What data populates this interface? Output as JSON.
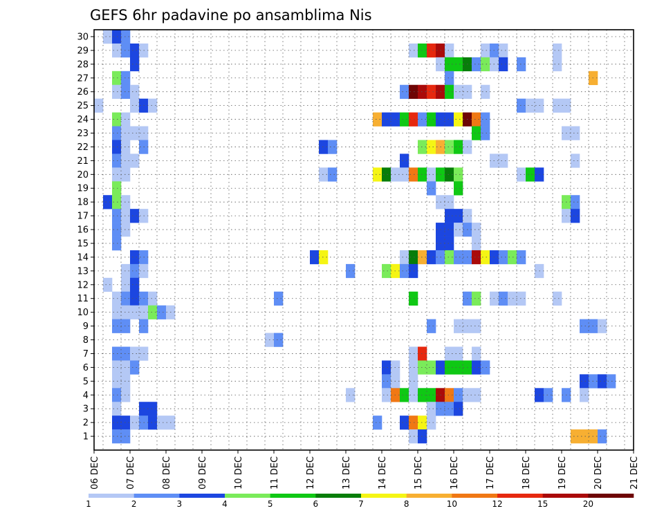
{
  "chart_data": {
    "type": "heatmap",
    "title": "GEFS 6hr padavine po ansamblima Nis",
    "x_tick_labels": [
      "06 DEC",
      "07 DEC",
      "08 DEC",
      "09 DEC",
      "10 DEC",
      "11 DEC",
      "12 DEC",
      "13 DEC",
      "14 DEC",
      "15 DEC",
      "16 DEC",
      "17 DEC",
      "18 DEC",
      "19 DEC",
      "20 DEC",
      "21 DEC"
    ],
    "y_tick_labels": [
      "1",
      "2",
      "3",
      "4",
      "5",
      "6",
      "7",
      "8",
      "9",
      "10",
      "11",
      "12",
      "13",
      "14",
      "15",
      "16",
      "17",
      "18",
      "19",
      "20",
      "21",
      "22",
      "23",
      "24",
      "25",
      "26",
      "27",
      "28",
      "29",
      "30"
    ],
    "xlim_days": [
      6,
      21
    ],
    "ylim_members": [
      0,
      30
    ],
    "time_step_hours": 6,
    "grid": true,
    "colorbar": {
      "labels": [
        "1",
        "2",
        "3",
        "4",
        "5",
        "6",
        "7",
        "8",
        "10",
        "12",
        "15",
        "20"
      ],
      "thresholds": [
        1,
        2,
        3,
        4,
        5,
        6,
        7,
        8,
        10,
        12,
        15,
        20
      ],
      "colors": [
        "#b4c8f5",
        "#5f8ef5",
        "#1c46e0",
        "#7aeb5a",
        "#0fc814",
        "#087d0a",
        "#f5f514",
        "#f7af32",
        "#f07814",
        "#e6280f",
        "#aa0a0a",
        "#6e0505"
      ]
    },
    "cells_note": "each cell: [member, time_step_index (0 = 06 DEC 00z, 4 per day), color_class 1..12]",
    "cells": [
      [
        30,
        1,
        1
      ],
      [
        30,
        2,
        3
      ],
      [
        30,
        3,
        2
      ],
      [
        29,
        2,
        1
      ],
      [
        29,
        3,
        2
      ],
      [
        29,
        4,
        3
      ],
      [
        29,
        5,
        1
      ],
      [
        29,
        35,
        1
      ],
      [
        29,
        36,
        5
      ],
      [
        29,
        37,
        10
      ],
      [
        29,
        38,
        11
      ],
      [
        29,
        39,
        1
      ],
      [
        29,
        43,
        1
      ],
      [
        29,
        44,
        2
      ],
      [
        29,
        45,
        1
      ],
      [
        29,
        51,
        1
      ],
      [
        28,
        4,
        3
      ],
      [
        28,
        38,
        1
      ],
      [
        28,
        39,
        5
      ],
      [
        28,
        40,
        5
      ],
      [
        28,
        41,
        6
      ],
      [
        28,
        42,
        2
      ],
      [
        28,
        43,
        4
      ],
      [
        28,
        44,
        1
      ],
      [
        28,
        45,
        3
      ],
      [
        28,
        47,
        2
      ],
      [
        28,
        51,
        1
      ],
      [
        27,
        2,
        4
      ],
      [
        27,
        3,
        2
      ],
      [
        27,
        39,
        2
      ],
      [
        27,
        55,
        8
      ],
      [
        26,
        2,
        1
      ],
      [
        26,
        3,
        2
      ],
      [
        26,
        4,
        1
      ],
      [
        26,
        34,
        2
      ],
      [
        26,
        35,
        12
      ],
      [
        26,
        36,
        11
      ],
      [
        26,
        37,
        10
      ],
      [
        26,
        38,
        11
      ],
      [
        26,
        39,
        5
      ],
      [
        26,
        40,
        1
      ],
      [
        26,
        41,
        1
      ],
      [
        26,
        43,
        1
      ],
      [
        25,
        0,
        1
      ],
      [
        25,
        4,
        1
      ],
      [
        25,
        5,
        3
      ],
      [
        25,
        6,
        1
      ],
      [
        25,
        47,
        2
      ],
      [
        25,
        48,
        1
      ],
      [
        25,
        49,
        1
      ],
      [
        25,
        51,
        1
      ],
      [
        25,
        52,
        1
      ],
      [
        24,
        2,
        4
      ],
      [
        24,
        3,
        1
      ],
      [
        24,
        31,
        8
      ],
      [
        24,
        32,
        3
      ],
      [
        24,
        33,
        3
      ],
      [
        24,
        34,
        5
      ],
      [
        24,
        35,
        10
      ],
      [
        24,
        36,
        2
      ],
      [
        24,
        37,
        5
      ],
      [
        24,
        38,
        3
      ],
      [
        24,
        39,
        3
      ],
      [
        24,
        40,
        7
      ],
      [
        24,
        41,
        12
      ],
      [
        24,
        42,
        9
      ],
      [
        24,
        43,
        2
      ],
      [
        23,
        2,
        2
      ],
      [
        23,
        3,
        1
      ],
      [
        23,
        4,
        1
      ],
      [
        23,
        5,
        1
      ],
      [
        23,
        42,
        5
      ],
      [
        23,
        43,
        2
      ],
      [
        23,
        52,
        1
      ],
      [
        23,
        53,
        1
      ],
      [
        22,
        2,
        3
      ],
      [
        22,
        3,
        1
      ],
      [
        22,
        5,
        2
      ],
      [
        22,
        25,
        3
      ],
      [
        22,
        26,
        2
      ],
      [
        22,
        36,
        4
      ],
      [
        22,
        37,
        7
      ],
      [
        22,
        38,
        8
      ],
      [
        22,
        39,
        4
      ],
      [
        22,
        40,
        5
      ],
      [
        22,
        41,
        1
      ],
      [
        21,
        2,
        2
      ],
      [
        21,
        3,
        1
      ],
      [
        21,
        4,
        1
      ],
      [
        21,
        34,
        3
      ],
      [
        21,
        44,
        1
      ],
      [
        21,
        45,
        1
      ],
      [
        21,
        53,
        1
      ],
      [
        20,
        2,
        1
      ],
      [
        20,
        3,
        1
      ],
      [
        20,
        25,
        1
      ],
      [
        20,
        26,
        2
      ],
      [
        20,
        31,
        7
      ],
      [
        20,
        32,
        6
      ],
      [
        20,
        33,
        1
      ],
      [
        20,
        34,
        1
      ],
      [
        20,
        35,
        9
      ],
      [
        20,
        36,
        5
      ],
      [
        20,
        37,
        1
      ],
      [
        20,
        38,
        5
      ],
      [
        20,
        39,
        6
      ],
      [
        20,
        40,
        4
      ],
      [
        20,
        47,
        1
      ],
      [
        20,
        48,
        5
      ],
      [
        20,
        49,
        3
      ],
      [
        19,
        2,
        4
      ],
      [
        19,
        37,
        2
      ],
      [
        19,
        40,
        5
      ],
      [
        18,
        1,
        3
      ],
      [
        18,
        2,
        4
      ],
      [
        18,
        3,
        1
      ],
      [
        18,
        38,
        1
      ],
      [
        18,
        39,
        1
      ],
      [
        18,
        52,
        4
      ],
      [
        18,
        53,
        2
      ],
      [
        17,
        2,
        2
      ],
      [
        17,
        3,
        1
      ],
      [
        17,
        4,
        3
      ],
      [
        17,
        5,
        1
      ],
      [
        17,
        39,
        3
      ],
      [
        17,
        40,
        3
      ],
      [
        17,
        41,
        1
      ],
      [
        17,
        52,
        1
      ],
      [
        17,
        53,
        3
      ],
      [
        16,
        2,
        2
      ],
      [
        16,
        3,
        1
      ],
      [
        16,
        38,
        3
      ],
      [
        16,
        39,
        3
      ],
      [
        16,
        40,
        1
      ],
      [
        16,
        41,
        2
      ],
      [
        16,
        42,
        1
      ],
      [
        15,
        2,
        2
      ],
      [
        15,
        38,
        3
      ],
      [
        15,
        39,
        3
      ],
      [
        15,
        42,
        1
      ],
      [
        14,
        4,
        3
      ],
      [
        14,
        5,
        2
      ],
      [
        14,
        24,
        3
      ],
      [
        14,
        25,
        7
      ],
      [
        14,
        34,
        1
      ],
      [
        14,
        35,
        6
      ],
      [
        14,
        36,
        8
      ],
      [
        14,
        37,
        3
      ],
      [
        14,
        38,
        2
      ],
      [
        14,
        39,
        4
      ],
      [
        14,
        40,
        2
      ],
      [
        14,
        41,
        2
      ],
      [
        14,
        42,
        11
      ],
      [
        14,
        43,
        7
      ],
      [
        14,
        44,
        3
      ],
      [
        14,
        45,
        2
      ],
      [
        14,
        46,
        4
      ],
      [
        14,
        47,
        2
      ],
      [
        13,
        3,
        1
      ],
      [
        13,
        4,
        2
      ],
      [
        13,
        5,
        1
      ],
      [
        13,
        28,
        2
      ],
      [
        13,
        32,
        4
      ],
      [
        13,
        33,
        7
      ],
      [
        13,
        34,
        2
      ],
      [
        13,
        35,
        3
      ],
      [
        13,
        49,
        1
      ],
      [
        12,
        1,
        1
      ],
      [
        12,
        3,
        1
      ],
      [
        12,
        4,
        3
      ],
      [
        11,
        2,
        1
      ],
      [
        11,
        3,
        2
      ],
      [
        11,
        4,
        3
      ],
      [
        11,
        5,
        2
      ],
      [
        11,
        6,
        1
      ],
      [
        11,
        20,
        2
      ],
      [
        11,
        35,
        5
      ],
      [
        11,
        41,
        2
      ],
      [
        11,
        42,
        4
      ],
      [
        11,
        44,
        1
      ],
      [
        11,
        45,
        2
      ],
      [
        11,
        46,
        1
      ],
      [
        11,
        47,
        1
      ],
      [
        11,
        51,
        1
      ],
      [
        10,
        2,
        1
      ],
      [
        10,
        3,
        1
      ],
      [
        10,
        4,
        1
      ],
      [
        10,
        5,
        1
      ],
      [
        10,
        6,
        4
      ],
      [
        10,
        7,
        2
      ],
      [
        10,
        8,
        1
      ],
      [
        9,
        2,
        2
      ],
      [
        9,
        3,
        2
      ],
      [
        9,
        5,
        2
      ],
      [
        9,
        37,
        2
      ],
      [
        9,
        40,
        1
      ],
      [
        9,
        41,
        1
      ],
      [
        9,
        42,
        1
      ],
      [
        9,
        54,
        2
      ],
      [
        9,
        55,
        2
      ],
      [
        9,
        56,
        1
      ],
      [
        8,
        19,
        1
      ],
      [
        8,
        20,
        2
      ],
      [
        7,
        2,
        2
      ],
      [
        7,
        3,
        2
      ],
      [
        7,
        4,
        1
      ],
      [
        7,
        5,
        1
      ],
      [
        7,
        35,
        1
      ],
      [
        7,
        36,
        10
      ],
      [
        7,
        39,
        1
      ],
      [
        7,
        40,
        1
      ],
      [
        7,
        42,
        1
      ],
      [
        6,
        2,
        1
      ],
      [
        6,
        3,
        1
      ],
      [
        6,
        4,
        2
      ],
      [
        6,
        32,
        3
      ],
      [
        6,
        33,
        1
      ],
      [
        6,
        35,
        1
      ],
      [
        6,
        36,
        4
      ],
      [
        6,
        37,
        4
      ],
      [
        6,
        38,
        3
      ],
      [
        6,
        39,
        5
      ],
      [
        6,
        40,
        5
      ],
      [
        6,
        41,
        5
      ],
      [
        6,
        42,
        3
      ],
      [
        6,
        43,
        2
      ],
      [
        5,
        2,
        1
      ],
      [
        5,
        3,
        1
      ],
      [
        5,
        32,
        2
      ],
      [
        5,
        33,
        1
      ],
      [
        5,
        35,
        1
      ],
      [
        5,
        54,
        3
      ],
      [
        5,
        55,
        2
      ],
      [
        5,
        56,
        3
      ],
      [
        5,
        57,
        2
      ],
      [
        4,
        2,
        2
      ],
      [
        4,
        3,
        1
      ],
      [
        4,
        28,
        1
      ],
      [
        4,
        32,
        1
      ],
      [
        4,
        33,
        9
      ],
      [
        4,
        34,
        5
      ],
      [
        4,
        35,
        1
      ],
      [
        4,
        36,
        5
      ],
      [
        4,
        37,
        5
      ],
      [
        4,
        38,
        11
      ],
      [
        4,
        39,
        9
      ],
      [
        4,
        40,
        2
      ],
      [
        4,
        41,
        1
      ],
      [
        4,
        42,
        1
      ],
      [
        4,
        49,
        3
      ],
      [
        4,
        50,
        2
      ],
      [
        4,
        52,
        2
      ],
      [
        4,
        54,
        1
      ],
      [
        3,
        2,
        1
      ],
      [
        3,
        5,
        3
      ],
      [
        3,
        6,
        3
      ],
      [
        3,
        37,
        1
      ],
      [
        3,
        38,
        2
      ],
      [
        3,
        39,
        2
      ],
      [
        3,
        40,
        3
      ],
      [
        2,
        2,
        3
      ],
      [
        2,
        3,
        3
      ],
      [
        2,
        4,
        1
      ],
      [
        2,
        5,
        2
      ],
      [
        2,
        6,
        3
      ],
      [
        2,
        7,
        1
      ],
      [
        2,
        8,
        1
      ],
      [
        2,
        31,
        2
      ],
      [
        2,
        34,
        3
      ],
      [
        2,
        35,
        9
      ],
      [
        2,
        36,
        7
      ],
      [
        2,
        37,
        1
      ],
      [
        1,
        2,
        2
      ],
      [
        1,
        3,
        2
      ],
      [
        1,
        35,
        1
      ],
      [
        1,
        36,
        3
      ],
      [
        1,
        53,
        8
      ],
      [
        1,
        54,
        8
      ],
      [
        1,
        55,
        8
      ],
      [
        1,
        56,
        2
      ]
    ]
  }
}
